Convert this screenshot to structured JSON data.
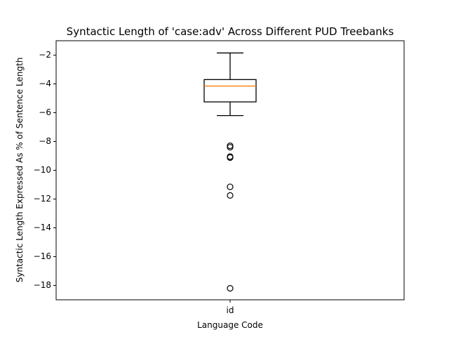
{
  "chart_data": {
    "type": "box",
    "title": "Syntactic Length of 'case:adv' Across Different PUD Treebanks",
    "xlabel": "Language Code",
    "ylabel": "Syntactic Length Expressed As % of Sentence Length",
    "categories": [
      "id"
    ],
    "ylim": [
      -19.0,
      -1.0
    ],
    "y_ticks": [
      -2,
      -4,
      -6,
      -8,
      -10,
      -12,
      -14,
      -16,
      -18
    ],
    "boxes": [
      {
        "category": "id",
        "whisker_low": -6.2,
        "q1": -5.25,
        "median": -4.15,
        "q3": -3.7,
        "whisker_high": -1.85,
        "outliers": [
          -8.3,
          -8.4,
          -9.05,
          -9.12,
          -11.15,
          -11.75,
          -18.2
        ]
      }
    ],
    "grid": false,
    "colors": {
      "box": "#000000",
      "median": "#ff7f0e",
      "outlier": "#000000"
    }
  }
}
